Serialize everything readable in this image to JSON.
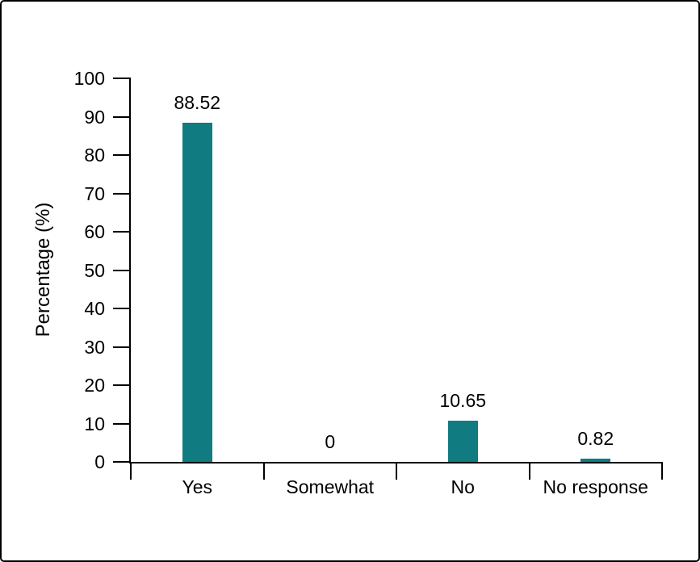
{
  "chart_data": {
    "type": "bar",
    "title": "",
    "xlabel": "",
    "ylabel": "Percentage (%)",
    "categories": [
      "Yes",
      "Somewhat",
      "No",
      "No response"
    ],
    "values": [
      88.52,
      0,
      10.65,
      0.82
    ],
    "value_labels": [
      "88.52",
      "0",
      "10.65",
      "0.82"
    ],
    "ylim": [
      0,
      100
    ],
    "yticks": [
      0,
      10,
      20,
      30,
      40,
      50,
      60,
      70,
      80,
      90,
      100
    ],
    "bar_color": "#107c81",
    "axis_color": "#000000",
    "grid": false,
    "legend": false
  }
}
